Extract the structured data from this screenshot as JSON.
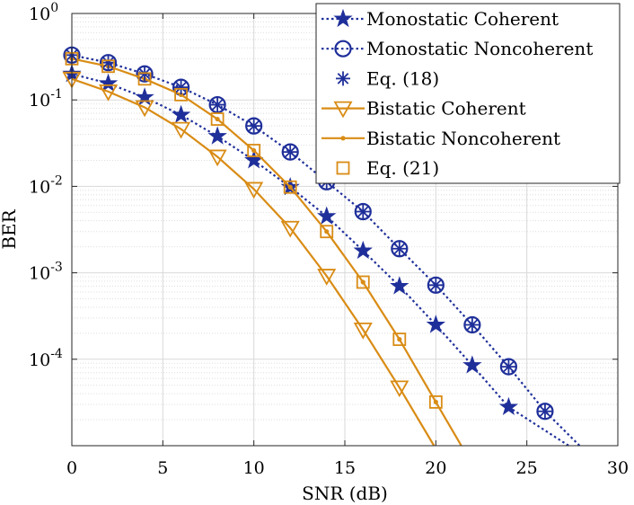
{
  "chart_data": {
    "type": "line",
    "xlabel": "SNR (dB)",
    "ylabel": "BER",
    "xlim": [
      0,
      30
    ],
    "ylim": [
      1e-05,
      1
    ],
    "yscale": "log",
    "grid": true,
    "legend_position": "top-right",
    "xticks": [
      "0",
      "5",
      "10",
      "15",
      "20",
      "25",
      "30"
    ],
    "yticks": [
      {
        "base": "10",
        "exp": "0",
        "value": 1
      },
      {
        "base": "10",
        "exp": "-1",
        "value": 0.1
      },
      {
        "base": "10",
        "exp": "-2",
        "value": 0.01
      },
      {
        "base": "10",
        "exp": "-3",
        "value": 0.001
      },
      {
        "base": "10",
        "exp": "-4",
        "value": 0.0001
      }
    ],
    "series": [
      {
        "name": "Monostatic Coherent",
        "color": "#1f2f9a",
        "line": "dotted",
        "marker": "star",
        "x": [
          0,
          2,
          4,
          6,
          8,
          10,
          12,
          14,
          16,
          18,
          20,
          22,
          24
        ],
        "values": [
          0.2,
          0.155,
          0.107,
          0.067,
          0.038,
          0.02,
          0.0098,
          0.0045,
          0.0018,
          0.0007,
          0.00025,
          8.5e-05,
          2.8e-05
        ],
        "ext_x": 27.3,
        "ext_y": 1e-05
      },
      {
        "name": "Monostatic Noncoherent",
        "color": "#1f2f9a",
        "line": "dotted",
        "marker": "circle",
        "x": [
          0,
          2,
          4,
          6,
          8,
          10,
          12,
          14,
          16,
          18,
          20,
          22,
          24,
          26
        ],
        "values": [
          0.33,
          0.27,
          0.2,
          0.14,
          0.088,
          0.05,
          0.025,
          0.0113,
          0.0051,
          0.0019,
          0.00072,
          0.00025,
          8.2e-05,
          2.5e-05
        ],
        "ext_x": 27.9,
        "ext_y": 1e-05
      },
      {
        "name": "Eq. (18)",
        "color": "#1f2f9a",
        "line": "none",
        "marker": "asterisk",
        "x": [
          0,
          2,
          4,
          6,
          8,
          10,
          12,
          14,
          16,
          18,
          20,
          22,
          24,
          26
        ],
        "values": [
          0.33,
          0.27,
          0.2,
          0.14,
          0.088,
          0.05,
          0.025,
          0.0113,
          0.0051,
          0.0019,
          0.00072,
          0.00025,
          8.2e-05,
          2.5e-05
        ]
      },
      {
        "name": "Bistatic Coherent",
        "color": "#d98c15",
        "line": "solid",
        "marker": "triangle-down",
        "x": [
          0,
          2,
          4,
          6,
          8,
          10,
          12,
          14,
          16,
          18
        ],
        "values": [
          0.175,
          0.125,
          0.082,
          0.046,
          0.022,
          0.0093,
          0.0033,
          0.00092,
          0.00022,
          4.7e-05
        ],
        "ext_x": 19.9,
        "ext_y": 1e-05
      },
      {
        "name": "Bistatic Noncoherent",
        "color": "#d98c15",
        "line": "solid",
        "marker": "dot",
        "x": [
          0,
          2,
          4,
          6,
          8,
          10,
          12,
          14,
          16,
          18,
          20
        ],
        "values": [
          0.3,
          0.245,
          0.175,
          0.115,
          0.06,
          0.026,
          0.0098,
          0.003,
          0.00078,
          0.00017,
          3.2e-05
        ],
        "ext_x": 21.4,
        "ext_y": 1e-05
      },
      {
        "name": "Eq. (21)",
        "color": "#d98c15",
        "line": "none",
        "marker": "square",
        "x": [
          0,
          2,
          4,
          6,
          8,
          10,
          12,
          14,
          16,
          18,
          20
        ],
        "values": [
          0.3,
          0.245,
          0.175,
          0.115,
          0.06,
          0.026,
          0.0098,
          0.003,
          0.00078,
          0.00017,
          3.2e-05
        ]
      }
    ]
  }
}
